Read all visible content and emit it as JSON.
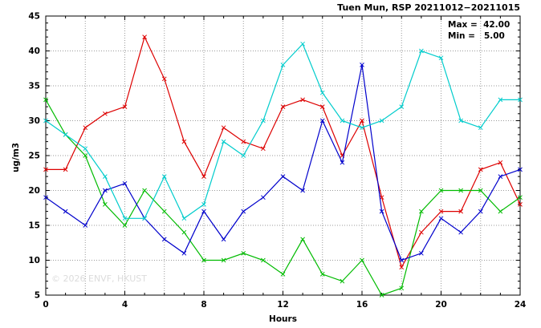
{
  "title": "Tuen Mun, RSP 20211012−20211015",
  "annotation": {
    "max_label": "Max =  42.00",
    "min_label": "Min =   5.00"
  },
  "watermark": "© 2026 ENVF, HKUST",
  "chart_data": {
    "type": "line",
    "title": "Tuen Mun, RSP 20211012−20211015",
    "xlabel": "Hours",
    "ylabel": "ug/m3",
    "xlim": [
      0,
      24
    ],
    "ylim": [
      5,
      45
    ],
    "x_major_ticks": [
      0,
      4,
      8,
      12,
      16,
      20,
      24
    ],
    "y_major_ticks": [
      5,
      10,
      15,
      20,
      25,
      30,
      35,
      40,
      45
    ],
    "x_grid_step": 2,
    "grid": true,
    "legend_position": "none",
    "max_value": 42.0,
    "min_value": 5.0,
    "x": [
      0,
      1,
      2,
      3,
      4,
      5,
      6,
      7,
      8,
      9,
      10,
      11,
      12,
      13,
      14,
      15,
      16,
      17,
      18,
      19,
      20,
      21,
      22,
      23,
      24
    ],
    "series": [
      {
        "name": "red-series",
        "color": "#dd0000",
        "values": [
          23,
          23,
          29,
          31,
          32,
          42,
          36,
          27,
          22,
          29,
          27,
          26,
          32,
          33,
          32,
          25,
          30,
          19,
          9,
          14,
          17,
          17,
          23,
          24,
          18
        ]
      },
      {
        "name": "green-series",
        "color": "#00bb00",
        "values": [
          33,
          28,
          25,
          18,
          15,
          20,
          17,
          14,
          10,
          10,
          11,
          10,
          8,
          13,
          8,
          7,
          10,
          5,
          6,
          17,
          20,
          20,
          20,
          17,
          19
        ]
      },
      {
        "name": "blue-series",
        "color": "#0000cc",
        "values": [
          19,
          17,
          15,
          20,
          21,
          16,
          13,
          11,
          17,
          13,
          17,
          19,
          22,
          20,
          30,
          24,
          38,
          17,
          10,
          11,
          16,
          14,
          17,
          22,
          23
        ]
      },
      {
        "name": "cyan-series",
        "color": "#00cccc",
        "values": [
          30,
          28,
          26,
          22,
          16,
          16,
          22,
          16,
          18,
          27,
          25,
          30,
          38,
          41,
          34,
          30,
          29,
          30,
          32,
          40,
          39,
          30,
          29,
          33,
          33
        ]
      }
    ]
  }
}
